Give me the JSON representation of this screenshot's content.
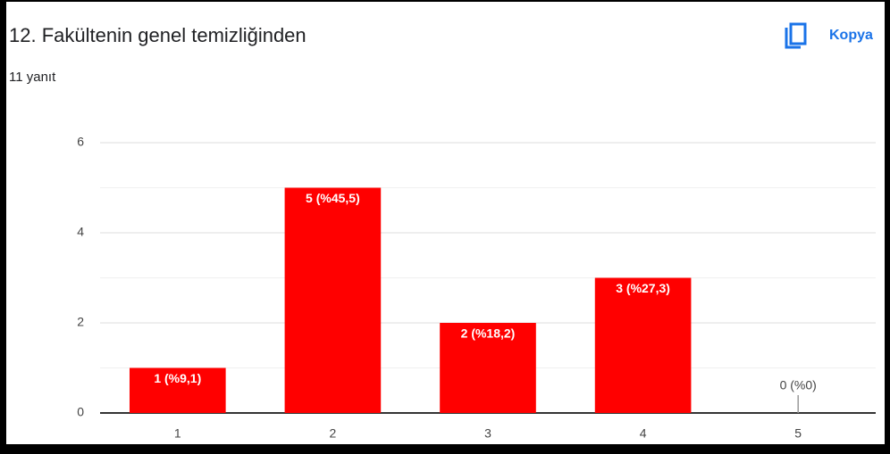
{
  "header": {
    "title": "12. Fakültenin genel temizliğinden",
    "subtitle": "11 yanıt",
    "copy_button": "Kopya"
  },
  "chart_data": {
    "type": "bar",
    "categories": [
      "1",
      "2",
      "3",
      "4",
      "5"
    ],
    "values": [
      1,
      5,
      2,
      3,
      0
    ],
    "value_labels": [
      "1 (%9,1)",
      "5 (%45,5)",
      "2 (%18,2)",
      "3 (%27,3)",
      "0 (%0)"
    ],
    "color": "#ff0000",
    "ylim": [
      0,
      6
    ],
    "yticks": [
      0,
      2,
      4,
      6
    ],
    "minor_yticks": [
      1,
      3,
      5
    ],
    "grid": true
  }
}
